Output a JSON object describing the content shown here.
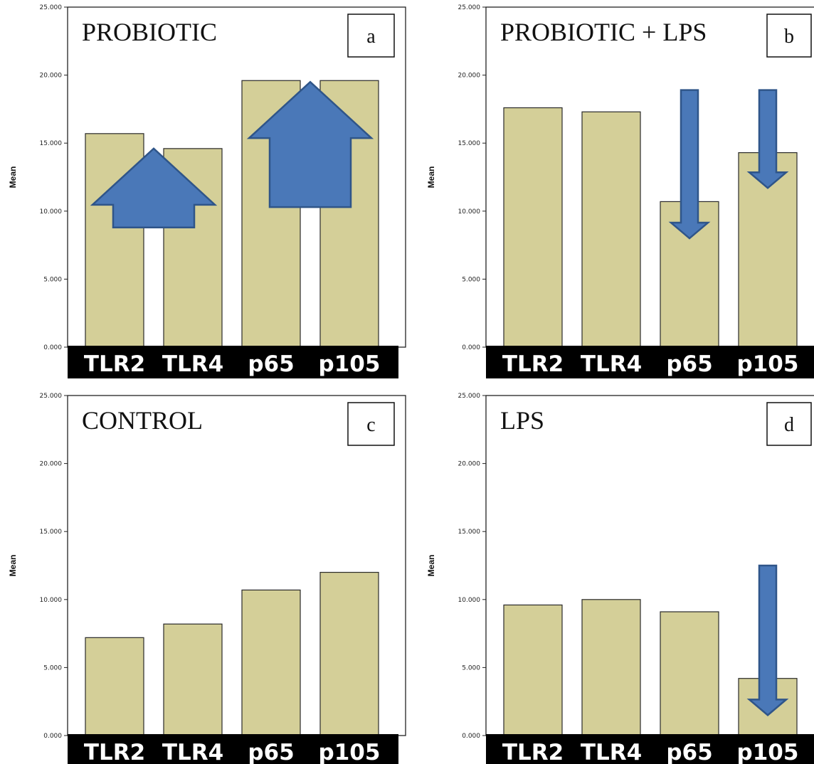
{
  "colors": {
    "bar_fill": "#d4cf98",
    "arrow_fill": "#4a78b8",
    "category_band": "#000000"
  },
  "chart_data": [
    {
      "panel": "a",
      "type": "bar",
      "title": "PROBIOTIC",
      "letter": "a",
      "ylabel": "Mean",
      "ylim": [
        0,
        25
      ],
      "yticks": [
        "0.000",
        "5.000",
        "10.000",
        "15.000",
        "20.000",
        "25.000"
      ],
      "categories": [
        "TLR2",
        "TLR4",
        "p65",
        "p105"
      ],
      "values": [
        15.7,
        14.6,
        19.6,
        19.6
      ],
      "annotations": [
        {
          "type": "arrow-up",
          "spans": [
            "TLR2",
            "TLR4"
          ],
          "from": 8.8,
          "to": 14.6
        },
        {
          "type": "arrow-up",
          "spans": [
            "p65",
            "p105"
          ],
          "from": 10.3,
          "to": 19.5
        }
      ]
    },
    {
      "panel": "b",
      "type": "bar",
      "title": "PROBIOTIC + LPS",
      "letter": "b",
      "ylabel": "Mean",
      "ylim": [
        0,
        25
      ],
      "yticks": [
        "0.000",
        "5.000",
        "10.000",
        "15.000",
        "20.000",
        "25.000"
      ],
      "categories": [
        "TLR2",
        "TLR4",
        "p65",
        "p105"
      ],
      "values": [
        17.6,
        17.3,
        10.7,
        14.3
      ],
      "annotations": [
        {
          "type": "arrow-down",
          "category": "p65",
          "from": 18.9,
          "to": 8.0
        },
        {
          "type": "arrow-down",
          "category": "p105",
          "from": 18.9,
          "to": 11.7
        }
      ]
    },
    {
      "panel": "c",
      "type": "bar",
      "title": "CONTROL",
      "letter": "c",
      "ylabel": "Mean",
      "ylim": [
        0,
        25
      ],
      "yticks": [
        "0.000",
        "5.000",
        "10.000",
        "15.000",
        "20.000",
        "25.000"
      ],
      "categories": [
        "TLR2",
        "TLR4",
        "p65",
        "p105"
      ],
      "values": [
        7.2,
        8.2,
        10.7,
        12.0
      ],
      "annotations": []
    },
    {
      "panel": "d",
      "type": "bar",
      "title": "LPS",
      "letter": "d",
      "ylabel": "Mean",
      "ylim": [
        0,
        25
      ],
      "yticks": [
        "0.000",
        "5.000",
        "10.000",
        "15.000",
        "20.000",
        "25.000"
      ],
      "categories": [
        "TLR2",
        "TLR4",
        "p65",
        "p105"
      ],
      "values": [
        9.6,
        10.0,
        9.1,
        4.2
      ],
      "annotations": [
        {
          "type": "arrow-down",
          "category": "p105",
          "from": 12.5,
          "to": 1.5
        }
      ]
    }
  ]
}
